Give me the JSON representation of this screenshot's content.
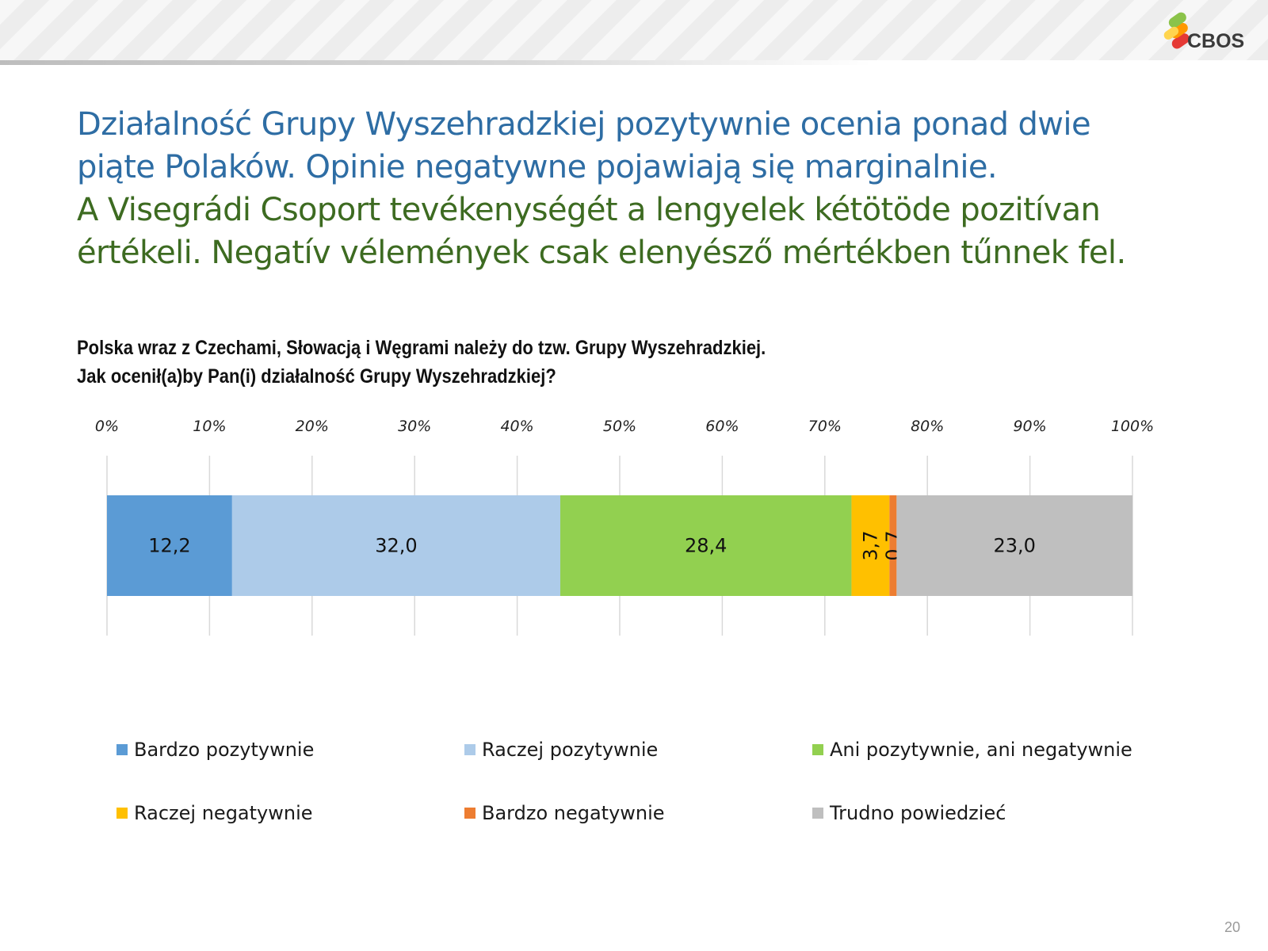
{
  "brand": {
    "logo_text": "CBOS"
  },
  "headline": {
    "polish": [
      "Działalność Grupy Wyszehradzkiej pozytywnie ocenia ponad dwie",
      "piąte Polaków. Opinie negatywne pojawiają się marginalnie."
    ],
    "hungarian": [
      "A Visegrádi Csoport tevékenységét a lengyelek kétötöde pozitívan",
      "értékeli. Negatív vélemények csak elenyésző mértékben tűnnek fel."
    ],
    "colors": {
      "polish": "#2e6da4",
      "hungarian": "#3d6b21"
    }
  },
  "question": {
    "line1": "Polska wraz z Czechami, Słowacją i Węgrami należy do tzw. Grupy Wyszehradzkiej.",
    "line2": "Jak ocenił(a)by Pan(i) działalność Grupy Wyszehradzkiej?"
  },
  "chart_data": {
    "type": "bar",
    "orientation": "horizontal",
    "stacked": true,
    "xlim": [
      0,
      100
    ],
    "x_ticks": [
      "0%",
      "10%",
      "20%",
      "30%",
      "40%",
      "50%",
      "60%",
      "70%",
      "80%",
      "90%",
      "100%"
    ],
    "grid": true,
    "legend_position": "bottom",
    "series": [
      {
        "name": "Bardzo pozytywnie",
        "value": 12.2,
        "label": "12,2",
        "color": "#5b9bd5",
        "label_rotated": false
      },
      {
        "name": "Raczej pozytywnie",
        "value": 32.0,
        "label": "32,0",
        "color": "#adcbe9",
        "label_rotated": false
      },
      {
        "name": "Ani pozytywnie, ani negatywnie",
        "value": 28.4,
        "label": "28,4",
        "color": "#92d050",
        "label_rotated": false
      },
      {
        "name": "Raczej negatywnie",
        "value": 3.7,
        "label": "3,7",
        "color": "#ffc000",
        "label_rotated": true
      },
      {
        "name": "Bardzo negatywnie",
        "value": 0.7,
        "label": "0,7",
        "color": "#ed7d31",
        "label_rotated": true
      },
      {
        "name": "Trudno powiedzieć",
        "value": 23.0,
        "label": "23,0",
        "color": "#bfbfbf",
        "label_rotated": false
      }
    ]
  },
  "page_number": "20"
}
